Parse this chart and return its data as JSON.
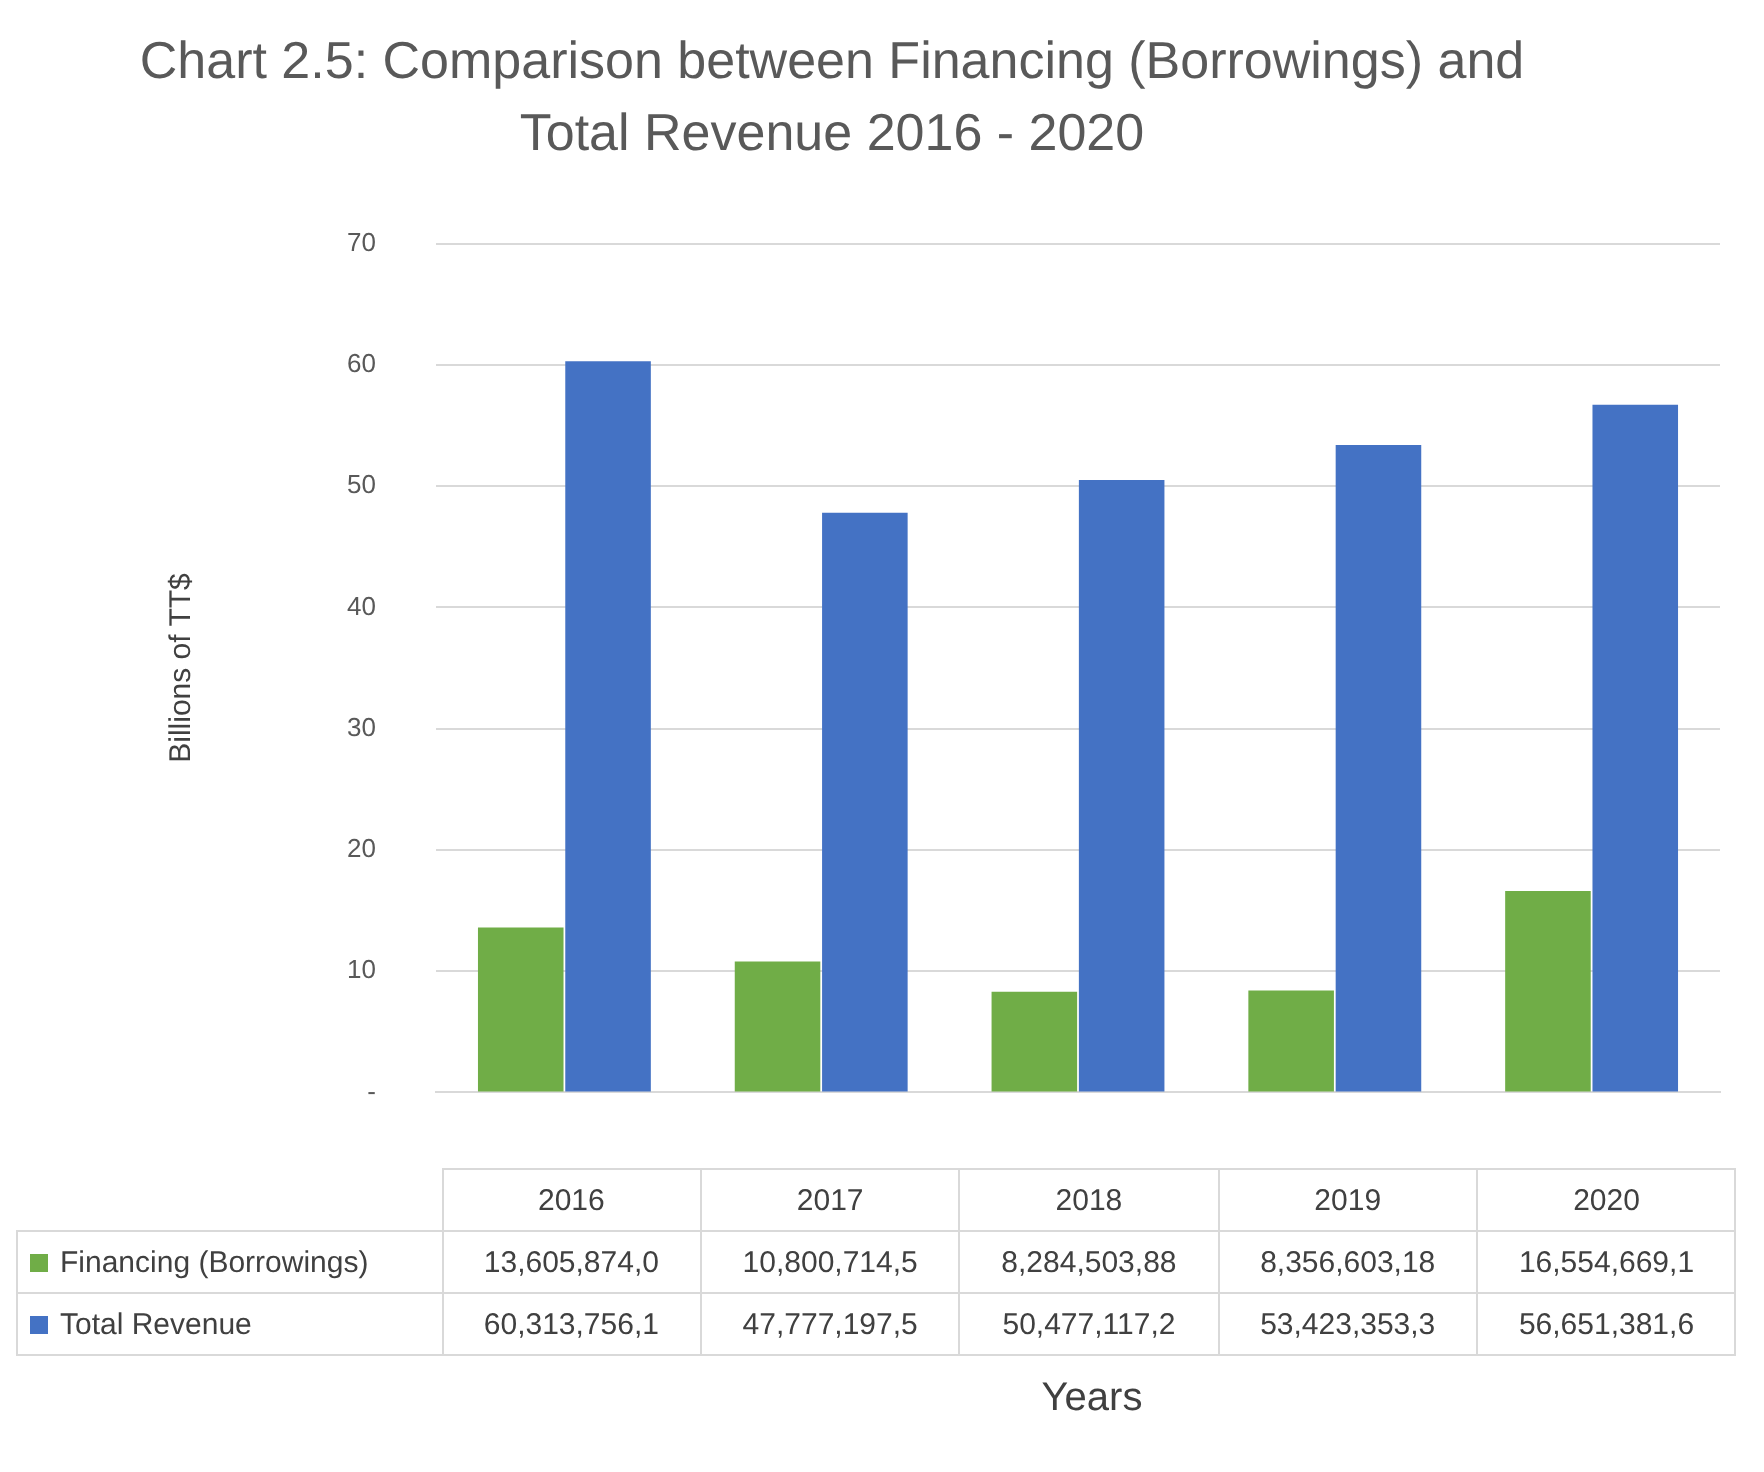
{
  "chart_data": {
    "type": "bar",
    "title": "Chart 2.5: Comparison between Financing (Borrowings) and Total Revenue 2016 - 2020",
    "xlabel": "Years",
    "ylabel": "Billions of TT$",
    "categories": [
      "2016",
      "2017",
      "2018",
      "2019",
      "2020"
    ],
    "series": [
      {
        "name": "Financing (Borrowings)",
        "color": "#70ad47",
        "values": [
          13.6,
          10.8,
          8.3,
          8.4,
          16.6
        ],
        "value_labels": [
          "13,605,874,0",
          "10,800,714,5",
          "8,284,503,88",
          "8,356,603,18",
          "16,554,669,1"
        ]
      },
      {
        "name": "Total Revenue",
        "color": "#4472c4",
        "values": [
          60.3,
          47.8,
          50.5,
          53.4,
          56.7
        ],
        "value_labels": [
          "60,313,756,1",
          "47,777,197,5",
          "50,477,117,2",
          "53,423,353,3",
          "56,651,381,6"
        ]
      }
    ],
    "ylim": [
      0,
      70
    ],
    "yticks": [
      {
        "value": 0,
        "label": "-"
      },
      10,
      20,
      30,
      40,
      50,
      60,
      70
    ],
    "grid": "y",
    "legend": "bottom"
  }
}
